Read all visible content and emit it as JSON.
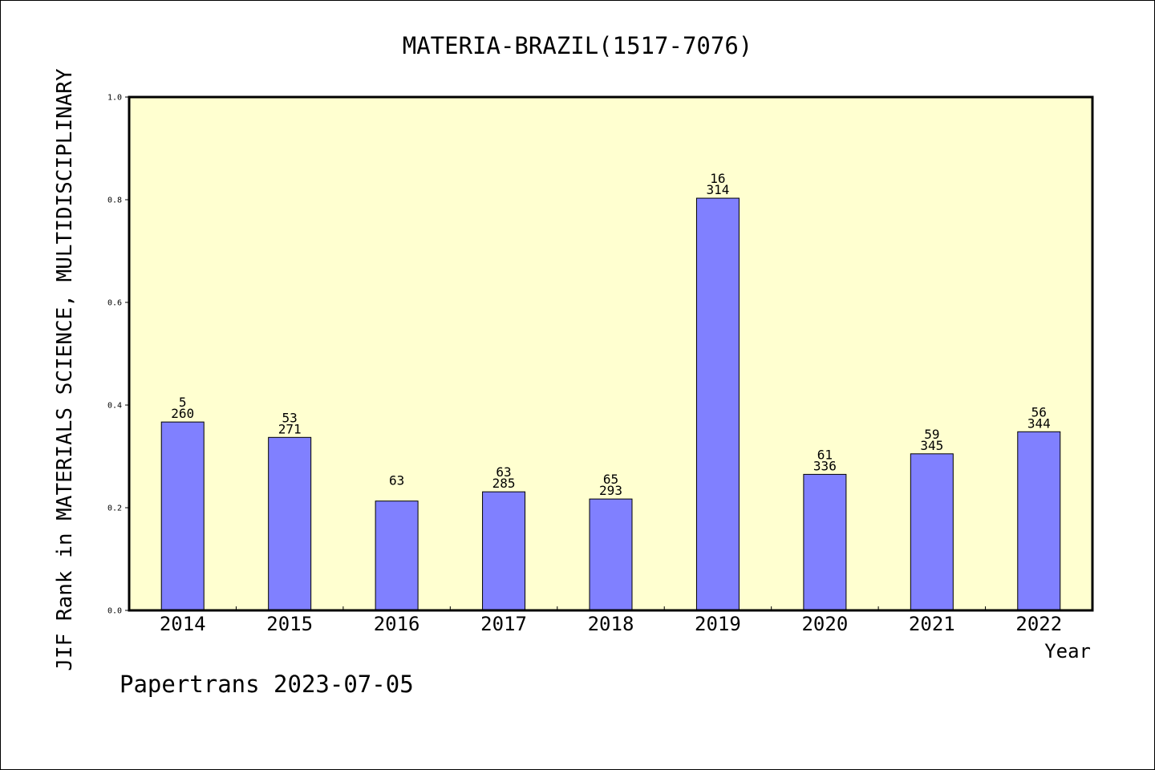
{
  "chart_data": {
    "type": "bar",
    "title": "MATERIA-BRAZIL(1517-7076)",
    "xlabel": "Year",
    "ylabel": "JIF Rank in MATERIALS SCIENCE, MULTIDISCIPLINARY",
    "ylim": [
      0,
      1.0
    ],
    "yticks": [
      "0.0",
      "0.2",
      "0.4",
      "0.6",
      "0.8",
      "1.0"
    ],
    "categories": [
      "2014",
      "2015",
      "2016",
      "2017",
      "2018",
      "2019",
      "2020",
      "2021",
      "2022"
    ],
    "values": [
      0.367,
      0.337,
      0.213,
      0.231,
      0.217,
      0.803,
      0.265,
      0.305,
      0.348
    ],
    "labels": [
      {
        "rank": "5",
        "total": "260"
      },
      {
        "rank": "53",
        "total": "271"
      },
      {
        "rank": "63",
        "total": ""
      },
      {
        "rank": "63",
        "total": "285"
      },
      {
        "rank": "65",
        "total": "293"
      },
      {
        "rank": "16",
        "total": "314"
      },
      {
        "rank": "61",
        "total": "336"
      },
      {
        "rank": "59",
        "total": "345"
      },
      {
        "rank": "56",
        "total": "344"
      }
    ],
    "grid": false,
    "colors": {
      "plot_background": "#ffffd0",
      "bar_fill": "#8080ff",
      "bar_stroke": "#000000"
    }
  },
  "footer": {
    "text": "Papertrans 2023-07-05"
  }
}
